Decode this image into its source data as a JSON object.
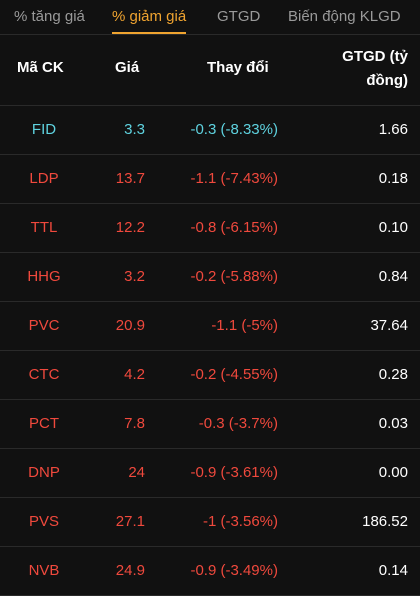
{
  "tabs": [
    {
      "label": "% tăng giá",
      "active": false
    },
    {
      "label": "% giảm giá",
      "active": true
    },
    {
      "label": "GTGD",
      "active": false
    },
    {
      "label": "Biến động KLGD",
      "active": false
    }
  ],
  "header": {
    "code": "Mã CK",
    "price": "Giá",
    "change": "Thay đổi",
    "value_line1": "GTGD (tỷ",
    "value_line2": "đồng)"
  },
  "colors": {
    "active_tab": "#f0a430",
    "floor": "#5fd3e0",
    "down": "#f0493d"
  },
  "rows": [
    {
      "code": "FID",
      "price": "3.3",
      "change": "-0.3 (-8.33%)",
      "value": "1.66",
      "color": "floor"
    },
    {
      "code": "LDP",
      "price": "13.7",
      "change": "-1.1 (-7.43%)",
      "value": "0.18",
      "color": "down"
    },
    {
      "code": "TTL",
      "price": "12.2",
      "change": "-0.8 (-6.15%)",
      "value": "0.10",
      "color": "down"
    },
    {
      "code": "HHG",
      "price": "3.2",
      "change": "-0.2 (-5.88%)",
      "value": "0.84",
      "color": "down"
    },
    {
      "code": "PVC",
      "price": "20.9",
      "change": "-1.1 (-5%)",
      "value": "37.64",
      "color": "down"
    },
    {
      "code": "CTC",
      "price": "4.2",
      "change": "-0.2 (-4.55%)",
      "value": "0.28",
      "color": "down"
    },
    {
      "code": "PCT",
      "price": "7.8",
      "change": "-0.3 (-3.7%)",
      "value": "0.03",
      "color": "down"
    },
    {
      "code": "DNP",
      "price": "24",
      "change": "-0.9 (-3.61%)",
      "value": "0.00",
      "color": "down"
    },
    {
      "code": "PVS",
      "price": "27.1",
      "change": "-1 (-3.56%)",
      "value": "186.52",
      "color": "down"
    },
    {
      "code": "NVB",
      "price": "24.9",
      "change": "-0.9 (-3.49%)",
      "value": "0.14",
      "color": "down"
    }
  ]
}
